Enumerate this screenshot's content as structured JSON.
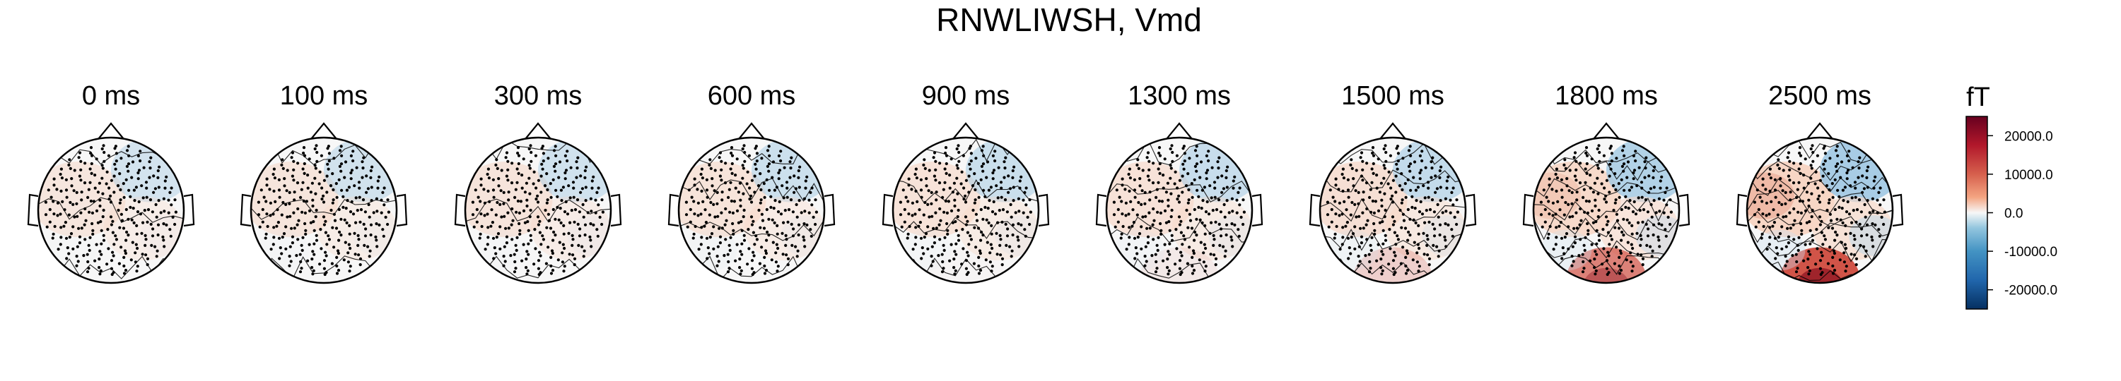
{
  "chart_data": {
    "type": "heatmap",
    "title": "RNWLIWSH, Vmd",
    "panels": [
      {
        "label": "0 ms",
        "time_ms": 0,
        "intensity": 0.1
      },
      {
        "label": "100 ms",
        "time_ms": 100,
        "intensity": 0.15
      },
      {
        "label": "300 ms",
        "time_ms": 300,
        "intensity": 0.18
      },
      {
        "label": "600 ms",
        "time_ms": 600,
        "intensity": 0.25
      },
      {
        "label": "900 ms",
        "time_ms": 900,
        "intensity": 0.28
      },
      {
        "label": "1300 ms",
        "time_ms": 1300,
        "intensity": 0.33
      },
      {
        "label": "1500 ms",
        "time_ms": 1500,
        "intensity": 0.45
      },
      {
        "label": "1800 ms",
        "time_ms": 1800,
        "intensity": 0.8
      },
      {
        "label": "2500 ms",
        "time_ms": 2500,
        "intensity": 1.0
      }
    ],
    "colorbar": {
      "unit": "fT",
      "ticks": [
        "20000.0",
        "10000.0",
        "0.0",
        "-10000.0",
        "-20000.0"
      ],
      "tick_values": [
        20000,
        10000,
        0,
        -10000,
        -20000
      ],
      "range": [
        -25000,
        25000
      ],
      "colormap": "RdBu_r"
    },
    "colors": {
      "positive": "#a50f15",
      "negative": "#1f4e8c",
      "neutral": "#f7f7f7",
      "outline": "#000000"
    }
  }
}
